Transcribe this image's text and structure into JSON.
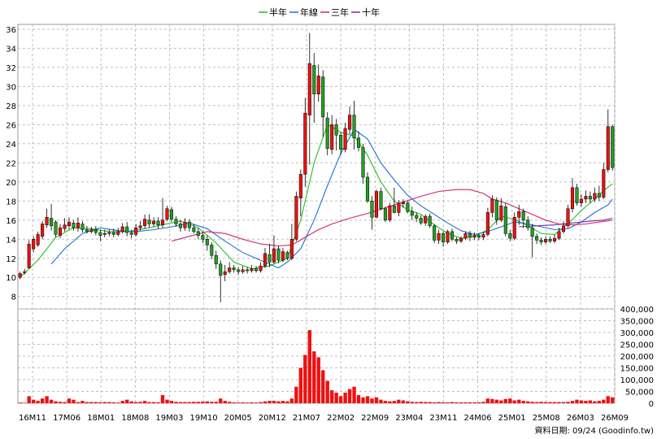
{
  "chart_data": {
    "type": "candlestick+line+bar",
    "legend": [
      {
        "name": "半年",
        "color": "#22c322"
      },
      {
        "name": "年線",
        "color": "#1f6fd6"
      },
      {
        "name": "三年",
        "color": "#d6206e"
      },
      {
        "name": "十年",
        "color": "#7a2aa0"
      }
    ],
    "price_axis": {
      "ticks": [
        8,
        10,
        12,
        14,
        16,
        18,
        20,
        22,
        24,
        26,
        28,
        30,
        32,
        34,
        36
      ],
      "ylim": [
        6.7,
        36.5
      ]
    },
    "volume_axis": {
      "ticks": [
        "0",
        "50,000",
        "100,000",
        "150,000",
        "200,000",
        "250,000",
        "300,000",
        "350,000",
        "400,000"
      ],
      "ylim": [
        0,
        400000
      ]
    },
    "x_labels": [
      "16M11",
      "17M06",
      "18M01",
      "18M08",
      "19M03",
      "19M10",
      "20M05",
      "20M12",
      "21M07",
      "22M02",
      "22M09",
      "23M04",
      "23M11",
      "24M06",
      "25M01",
      "25M08",
      "26M03",
      "26M09"
    ],
    "candles": [
      [
        10.0,
        10.4,
        9.8,
        10.6
      ],
      [
        10.5,
        10.6,
        10.3,
        10.9
      ],
      [
        11.0,
        13.5,
        10.9,
        13.9
      ],
      [
        13.0,
        14.0,
        12.6,
        14.3
      ],
      [
        13.4,
        14.5,
        13.2,
        14.8
      ],
      [
        14.3,
        15.6,
        14.0,
        15.9
      ],
      [
        15.5,
        16.3,
        15.2,
        17.2
      ],
      [
        16.2,
        15.4,
        14.9,
        17.7
      ],
      [
        15.8,
        14.5,
        14.2,
        16.0
      ],
      [
        14.4,
        15.2,
        14.1,
        15.6
      ],
      [
        15.1,
        15.5,
        14.8,
        16.2
      ],
      [
        15.4,
        15.8,
        15.0,
        16.3
      ],
      [
        15.7,
        15.2,
        14.9,
        16.0
      ],
      [
        15.2,
        15.7,
        14.8,
        16.3
      ],
      [
        15.6,
        15.0,
        14.7,
        15.9
      ],
      [
        15.0,
        14.8,
        14.6,
        15.4
      ],
      [
        14.8,
        15.0,
        14.6,
        15.3
      ],
      [
        15.0,
        14.7,
        14.4,
        15.4
      ],
      [
        14.7,
        14.4,
        13.8,
        15.0
      ],
      [
        14.5,
        14.6,
        14.2,
        15.0
      ],
      [
        14.6,
        14.7,
        14.3,
        15.0
      ],
      [
        14.7,
        14.5,
        14.2,
        15.1
      ],
      [
        14.5,
        14.8,
        14.3,
        15.2
      ],
      [
        14.8,
        15.3,
        14.6,
        15.7
      ],
      [
        15.3,
        14.7,
        14.3,
        15.8
      ],
      [
        14.7,
        14.5,
        14.1,
        15.0
      ],
      [
        14.5,
        15.2,
        14.3,
        15.6
      ],
      [
        15.2,
        15.4,
        14.9,
        15.9
      ],
      [
        15.4,
        16.1,
        15.1,
        16.6
      ],
      [
        16.0,
        15.6,
        15.2,
        16.6
      ],
      [
        15.6,
        15.9,
        15.3,
        16.3
      ],
      [
        15.9,
        15.5,
        15.1,
        16.3
      ],
      [
        15.5,
        16.0,
        15.2,
        18.3
      ],
      [
        16.1,
        17.2,
        15.9,
        17.5
      ],
      [
        17.1,
        16.1,
        15.8,
        17.4
      ],
      [
        16.1,
        15.6,
        15.3,
        16.4
      ],
      [
        15.6,
        15.2,
        14.8,
        16.0
      ],
      [
        15.2,
        15.8,
        14.9,
        16.2
      ],
      [
        15.8,
        15.2,
        14.8,
        16.1
      ],
      [
        15.2,
        14.8,
        14.6,
        15.6
      ],
      [
        14.8,
        14.4,
        14.0,
        15.2
      ],
      [
        14.4,
        14.0,
        13.6,
        14.8
      ],
      [
        14.0,
        13.4,
        12.8,
        14.4
      ],
      [
        13.4,
        12.3,
        11.9,
        13.7
      ],
      [
        12.3,
        11.4,
        10.9,
        12.8
      ],
      [
        11.4,
        10.2,
        7.4,
        11.8
      ],
      [
        10.3,
        10.6,
        9.6,
        11.3
      ],
      [
        10.6,
        11.0,
        10.4,
        11.6
      ],
      [
        11.0,
        10.8,
        10.5,
        11.3
      ],
      [
        10.8,
        10.6,
        10.3,
        11.1
      ],
      [
        10.6,
        10.8,
        10.4,
        11.2
      ],
      [
        10.8,
        10.7,
        10.4,
        11.1
      ],
      [
        10.7,
        10.9,
        10.5,
        11.3
      ],
      [
        10.9,
        10.7,
        10.5,
        11.2
      ],
      [
        10.7,
        11.2,
        10.5,
        11.6
      ],
      [
        11.2,
        12.5,
        11.0,
        13.1
      ],
      [
        12.4,
        11.6,
        11.1,
        13.5
      ],
      [
        11.6,
        13.0,
        11.4,
        14.4
      ],
      [
        13.0,
        11.8,
        11.5,
        13.3
      ],
      [
        11.8,
        12.7,
        11.6,
        13.1
      ],
      [
        12.6,
        12.0,
        11.8,
        12.8
      ],
      [
        12.0,
        14.0,
        11.8,
        15.6
      ],
      [
        14.0,
        18.5,
        13.8,
        19.0
      ],
      [
        18.3,
        20.8,
        16.4,
        21.3
      ],
      [
        20.8,
        27.2,
        19.5,
        28.8
      ],
      [
        27.0,
        32.4,
        21.8,
        35.6
      ],
      [
        32.2,
        29.2,
        26.2,
        33.5
      ],
      [
        29.2,
        31.1,
        28.4,
        32.3
      ],
      [
        31.0,
        26.8,
        24.7,
        31.7
      ],
      [
        26.7,
        23.5,
        22.8,
        27.3
      ],
      [
        23.4,
        26.0,
        22.9,
        27.0
      ],
      [
        26.0,
        24.9,
        23.3,
        26.6
      ],
      [
        24.9,
        23.4,
        22.8,
        25.2
      ],
      [
        23.4,
        25.6,
        23.1,
        26.2
      ],
      [
        25.5,
        27.0,
        25.0,
        27.9
      ],
      [
        27.0,
        24.6,
        23.4,
        28.5
      ],
      [
        24.6,
        23.6,
        23.2,
        25.3
      ],
      [
        23.6,
        20.5,
        19.8,
        24.0
      ],
      [
        20.5,
        18.0,
        17.8,
        21.0
      ],
      [
        18.0,
        16.3,
        15.0,
        18.5
      ],
      [
        16.3,
        19.0,
        16.2,
        19.2
      ],
      [
        19.0,
        17.2,
        17.0,
        19.4
      ],
      [
        17.2,
        16.0,
        15.8,
        17.4
      ],
      [
        16.0,
        17.5,
        15.8,
        17.8
      ],
      [
        17.5,
        16.8,
        16.7,
        19.4
      ],
      [
        16.8,
        17.8,
        16.4,
        18.1
      ],
      [
        17.7,
        17.9,
        17.3,
        18.2
      ],
      [
        17.8,
        16.9,
        16.7,
        18.0
      ],
      [
        16.9,
        16.5,
        16.0,
        17.4
      ],
      [
        16.5,
        16.2,
        15.8,
        16.8
      ],
      [
        16.2,
        15.7,
        15.5,
        16.5
      ],
      [
        15.7,
        16.4,
        15.4,
        16.6
      ],
      [
        16.4,
        15.4,
        15.2,
        16.7
      ],
      [
        15.4,
        13.9,
        13.6,
        15.6
      ],
      [
        13.9,
        14.6,
        13.5,
        15.0
      ],
      [
        14.6,
        13.7,
        13.2,
        14.8
      ],
      [
        13.7,
        14.8,
        13.5,
        15.0
      ],
      [
        14.8,
        14.0,
        13.8,
        15.1
      ],
      [
        14.0,
        13.8,
        13.5,
        14.2
      ],
      [
        13.8,
        14.1,
        13.6,
        14.3
      ],
      [
        14.1,
        14.6,
        13.9,
        14.8
      ],
      [
        14.6,
        14.2,
        13.8,
        14.9
      ],
      [
        14.2,
        14.4,
        13.9,
        14.7
      ],
      [
        14.4,
        14.2,
        13.9,
        14.6
      ],
      [
        14.2,
        14.5,
        13.9,
        14.8
      ],
      [
        14.5,
        16.8,
        14.3,
        17.3
      ],
      [
        16.8,
        18.2,
        16.3,
        18.6
      ],
      [
        18.1,
        16.0,
        15.5,
        18.4
      ],
      [
        16.0,
        17.5,
        15.8,
        18.3
      ],
      [
        17.4,
        14.6,
        14.3,
        17.8
      ],
      [
        14.6,
        14.1,
        13.8,
        15.0
      ],
      [
        14.1,
        16.3,
        13.9,
        16.8
      ],
      [
        16.3,
        16.9,
        15.5,
        17.6
      ],
      [
        16.9,
        16.0,
        15.2,
        17.2
      ],
      [
        16.0,
        15.2,
        14.9,
        16.4
      ],
      [
        15.2,
        14.3,
        12.1,
        15.6
      ],
      [
        14.3,
        13.9,
        13.5,
        14.6
      ],
      [
        13.9,
        13.7,
        13.4,
        14.2
      ],
      [
        13.7,
        14.0,
        13.5,
        14.3
      ],
      [
        14.0,
        13.8,
        13.6,
        14.3
      ],
      [
        13.8,
        14.1,
        13.6,
        14.5
      ],
      [
        14.1,
        14.8,
        13.9,
        15.2
      ],
      [
        14.8,
        15.4,
        14.6,
        15.9
      ],
      [
        15.4,
        17.2,
        15.2,
        17.6
      ],
      [
        17.2,
        19.4,
        16.8,
        20.4
      ],
      [
        19.4,
        17.8,
        17.5,
        19.8
      ],
      [
        17.8,
        18.2,
        17.4,
        18.7
      ],
      [
        18.2,
        18.5,
        17.8,
        19.1
      ],
      [
        18.5,
        18.2,
        17.8,
        19.0
      ],
      [
        18.2,
        18.8,
        17.9,
        19.4
      ],
      [
        18.8,
        18.4,
        18.0,
        19.6
      ],
      [
        18.4,
        21.3,
        18.2,
        22.0
      ],
      [
        21.3,
        25.8,
        21.0,
        27.6
      ],
      [
        25.8,
        21.5,
        21.2,
        26.0
      ]
    ],
    "ma_half_year": [
      [
        0,
        10.0
      ],
      [
        4,
        11.8
      ],
      [
        8,
        14.2
      ],
      [
        12,
        15.2
      ],
      [
        16,
        15.1
      ],
      [
        20,
        14.8
      ],
      [
        24,
        14.8
      ],
      [
        28,
        15.1
      ],
      [
        32,
        15.5
      ],
      [
        36,
        15.9
      ],
      [
        40,
        15.2
      ],
      [
        44,
        13.6
      ],
      [
        48,
        11.6
      ],
      [
        52,
        10.9
      ],
      [
        56,
        11.2
      ],
      [
        60,
        12.0
      ],
      [
        63,
        16.0
      ],
      [
        66,
        22.0
      ],
      [
        69,
        26.0
      ],
      [
        72,
        25.2
      ],
      [
        75,
        24.8
      ],
      [
        78,
        22.8
      ],
      [
        81,
        20.0
      ],
      [
        84,
        18.0
      ],
      [
        87,
        17.1
      ],
      [
        90,
        16.6
      ],
      [
        93,
        15.5
      ],
      [
        96,
        14.6
      ],
      [
        99,
        14.1
      ],
      [
        102,
        14.3
      ],
      [
        105,
        15.0
      ],
      [
        108,
        16.4
      ],
      [
        111,
        16.1
      ],
      [
        114,
        15.4
      ],
      [
        117,
        14.6
      ],
      [
        120,
        14.5
      ],
      [
        123,
        15.6
      ],
      [
        126,
        17.0
      ],
      [
        129,
        18.2
      ],
      [
        131,
        19.1
      ],
      [
        133,
        19.8
      ]
    ],
    "ma_year": [
      [
        7,
        11.4
      ],
      [
        10,
        13.0
      ],
      [
        14,
        14.6
      ],
      [
        18,
        15.2
      ],
      [
        22,
        14.9
      ],
      [
        26,
        14.8
      ],
      [
        30,
        15.0
      ],
      [
        34,
        15.3
      ],
      [
        38,
        15.7
      ],
      [
        42,
        15.1
      ],
      [
        46,
        13.8
      ],
      [
        50,
        12.6
      ],
      [
        54,
        11.8
      ],
      [
        58,
        11.0
      ],
      [
        60,
        11.6
      ],
      [
        63,
        13.0
      ],
      [
        66,
        16.0
      ],
      [
        69,
        19.6
      ],
      [
        72,
        23.0
      ],
      [
        75,
        25.5
      ],
      [
        78,
        24.5
      ],
      [
        81,
        22.0
      ],
      [
        84,
        20.2
      ],
      [
        87,
        18.6
      ],
      [
        90,
        17.5
      ],
      [
        93,
        16.6
      ],
      [
        96,
        15.7
      ],
      [
        99,
        14.9
      ],
      [
        102,
        14.5
      ],
      [
        105,
        14.8
      ],
      [
        108,
        15.3
      ],
      [
        111,
        15.8
      ],
      [
        114,
        15.6
      ],
      [
        117,
        15.3
      ],
      [
        120,
        15.0
      ],
      [
        123,
        15.1
      ],
      [
        126,
        15.8
      ],
      [
        129,
        16.8
      ],
      [
        132,
        17.6
      ],
      [
        133,
        18.2
      ]
    ],
    "ma_three_year": [
      [
        34,
        13.8
      ],
      [
        38,
        14.3
      ],
      [
        42,
        14.8
      ],
      [
        46,
        14.6
      ],
      [
        50,
        14.0
      ],
      [
        54,
        13.5
      ],
      [
        58,
        13.3
      ],
      [
        61,
        13.4
      ],
      [
        64,
        14.2
      ],
      [
        67,
        15.0
      ],
      [
        70,
        15.6
      ],
      [
        74,
        16.2
      ],
      [
        78,
        16.7
      ],
      [
        82,
        17.3
      ],
      [
        86,
        17.9
      ],
      [
        90,
        18.5
      ],
      [
        94,
        19.0
      ],
      [
        98,
        19.2
      ],
      [
        101,
        19.2
      ],
      [
        104,
        18.8
      ],
      [
        106,
        18.2
      ],
      [
        109,
        17.8
      ],
      [
        112,
        17.2
      ],
      [
        115,
        16.6
      ],
      [
        118,
        16.0
      ],
      [
        121,
        15.6
      ],
      [
        124,
        15.5
      ],
      [
        127,
        15.6
      ],
      [
        130,
        15.8
      ],
      [
        133,
        16.0
      ]
    ],
    "ma_ten_year": [
      [
        112,
        15.3
      ],
      [
        116,
        15.4
      ],
      [
        120,
        15.5
      ],
      [
        124,
        15.7
      ],
      [
        128,
        15.9
      ],
      [
        131,
        16.0
      ],
      [
        133,
        16.2
      ]
    ],
    "volume": [
      3000,
      2000,
      30000,
      15000,
      10000,
      20000,
      30000,
      15000,
      8000,
      6000,
      5000,
      20000,
      15000,
      5000,
      10000,
      5000,
      5000,
      5000,
      4000,
      5000,
      5000,
      4000,
      3000,
      10000,
      15000,
      8000,
      5000,
      6000,
      10000,
      5000,
      5000,
      4000,
      35000,
      15000,
      10000,
      6000,
      5000,
      5000,
      5000,
      6000,
      6000,
      7000,
      8000,
      6000,
      6000,
      20000,
      10000,
      6000,
      4000,
      3000,
      4000,
      3000,
      4000,
      3000,
      5000,
      8000,
      10000,
      10000,
      8000,
      10000,
      8000,
      20000,
      70000,
      150000,
      205000,
      310000,
      220000,
      195000,
      140000,
      95000,
      55000,
      45000,
      30000,
      45000,
      60000,
      70000,
      35000,
      25000,
      30000,
      20000,
      25000,
      15000,
      10000,
      8000,
      10000,
      15000,
      12000,
      8000,
      6000,
      5000,
      6000,
      5000,
      5000,
      4000,
      5000,
      4000,
      4000,
      5000,
      4000,
      4000,
      4000,
      4000,
      4000,
      4000,
      6000,
      20000,
      18000,
      15000,
      12000,
      18000,
      20000,
      12000,
      15000,
      10000,
      8000,
      6000,
      5000,
      6000,
      5000,
      5000,
      5000,
      5000,
      5000,
      6000,
      10000,
      15000,
      12000,
      10000,
      12000,
      8000,
      10000,
      15000,
      30000,
      25000
    ]
  },
  "footer": {
    "source_label": "資料日期: 09/24  (Goodinfo.tw)"
  },
  "colors": {
    "up": "#ee1111",
    "down": "#22a022",
    "grid": "#bfbfbf",
    "volume": "#ee1111"
  }
}
